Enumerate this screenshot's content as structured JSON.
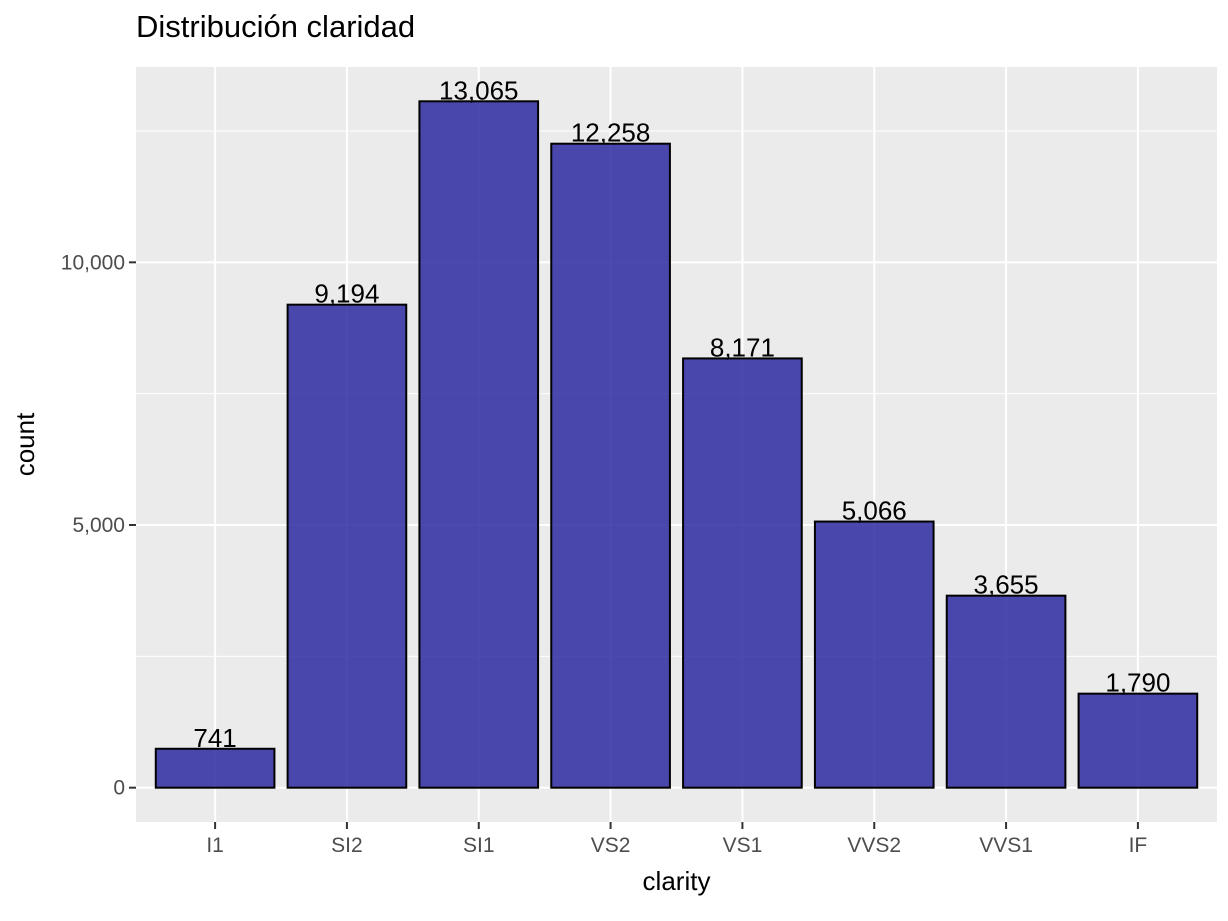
{
  "chart_data": {
    "type": "bar",
    "title": "Distribución claridad",
    "xlabel": "clarity",
    "ylabel": "count",
    "categories": [
      "I1",
      "SI2",
      "SI1",
      "VS2",
      "VS1",
      "VVS2",
      "VVS1",
      "IF"
    ],
    "values": [
      741,
      9194,
      13065,
      12258,
      8171,
      5066,
      3655,
      1790
    ],
    "data_labels": [
      "741",
      "9,194",
      "13,065",
      "12,258",
      "8,171",
      "5,066",
      "3,655",
      "1,790"
    ],
    "yticks": [
      0,
      5000,
      10000
    ],
    "ytick_labels": [
      "0",
      "5,000",
      "10,000"
    ],
    "ylim": [
      -653,
      13718
    ],
    "grid": true,
    "bar_color": "#2D2AA0",
    "bar_edge_color": "#000000",
    "panel_color": "#EBEBEB",
    "grid_color": "#FFFFFF"
  }
}
